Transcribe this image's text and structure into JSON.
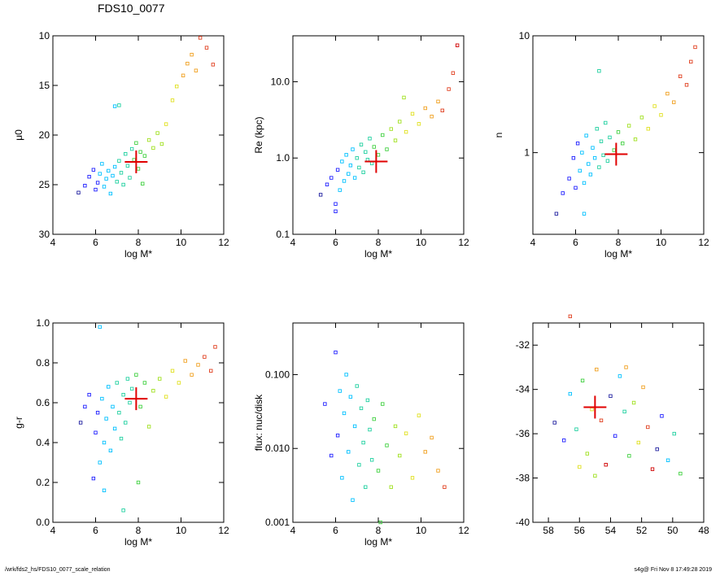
{
  "figure_title": "FDS10_0077",
  "footer": {
    "path": "/wrk/fds2_hs/FDS10_0077_scale_relation",
    "stamp": "s4g@  Fri Nov  8 17:49:28 2019"
  },
  "colors": {
    "marker_ramp": [
      "#2020a0",
      "#2020ff",
      "#00c0ff",
      "#20d0a0",
      "#40d040",
      "#a0e020",
      "#e0e020",
      "#f0a020",
      "#e04020",
      "#d00000"
    ],
    "highlight_cross": "#e00000"
  },
  "chart_data": [
    {
      "type": "scatter",
      "panel": "top-left",
      "xlabel": "log M*",
      "ylabel": "μ0",
      "xlim": [
        4,
        12
      ],
      "ylim": [
        30,
        10
      ],
      "xticks": [
        "4",
        "6",
        "8",
        "10",
        "12"
      ],
      "yticks": [
        "10",
        "15",
        "20",
        "25",
        "30"
      ],
      "y_axis_inverted": true,
      "highlight": {
        "x": 7.9,
        "y": 22.7
      },
      "points": [
        {
          "x": 5.2,
          "y": 25.8
        },
        {
          "x": 5.5,
          "y": 25.1
        },
        {
          "x": 5.7,
          "y": 24.2
        },
        {
          "x": 5.9,
          "y": 23.5
        },
        {
          "x": 6.0,
          "y": 25.5
        },
        {
          "x": 6.1,
          "y": 24.8
        },
        {
          "x": 6.2,
          "y": 23.9
        },
        {
          "x": 6.3,
          "y": 22.9
        },
        {
          "x": 6.4,
          "y": 25.2
        },
        {
          "x": 6.5,
          "y": 24.4
        },
        {
          "x": 6.6,
          "y": 23.6
        },
        {
          "x": 6.7,
          "y": 25.9
        },
        {
          "x": 6.8,
          "y": 24.1
        },
        {
          "x": 6.9,
          "y": 23.2
        },
        {
          "x": 7.0,
          "y": 24.7
        },
        {
          "x": 7.1,
          "y": 22.6
        },
        {
          "x": 7.2,
          "y": 23.8
        },
        {
          "x": 7.3,
          "y": 25.0
        },
        {
          "x": 7.4,
          "y": 21.9
        },
        {
          "x": 7.5,
          "y": 23.1
        },
        {
          "x": 7.6,
          "y": 24.3
        },
        {
          "x": 7.7,
          "y": 21.4
        },
        {
          "x": 7.8,
          "y": 22.5
        },
        {
          "x": 7.9,
          "y": 20.8
        },
        {
          "x": 8.0,
          "y": 23.4
        },
        {
          "x": 8.1,
          "y": 21.7
        },
        {
          "x": 8.3,
          "y": 22.1
        },
        {
          "x": 8.5,
          "y": 20.5
        },
        {
          "x": 8.7,
          "y": 21.3
        },
        {
          "x": 8.9,
          "y": 19.8
        },
        {
          "x": 9.1,
          "y": 20.9
        },
        {
          "x": 9.3,
          "y": 18.9
        },
        {
          "x": 9.6,
          "y": 16.5
        },
        {
          "x": 9.8,
          "y": 15.1
        },
        {
          "x": 10.1,
          "y": 14.0
        },
        {
          "x": 10.3,
          "y": 12.8
        },
        {
          "x": 10.5,
          "y": 11.9
        },
        {
          "x": 10.7,
          "y": 13.5
        },
        {
          "x": 10.9,
          "y": 10.2
        },
        {
          "x": 11.2,
          "y": 11.2
        },
        {
          "x": 11.5,
          "y": 12.9
        },
        {
          "x": 6.9,
          "y": 17.1
        },
        {
          "x": 7.1,
          "y": 17.0
        },
        {
          "x": 8.2,
          "y": 24.9
        }
      ]
    },
    {
      "type": "scatter",
      "panel": "top-middle",
      "xlabel": "log M*",
      "ylabel": "Re (kpc)",
      "xlim": [
        4,
        12
      ],
      "ylim": [
        0.1,
        40
      ],
      "yscale": "log",
      "xticks": [
        "4",
        "6",
        "8",
        "10",
        "12"
      ],
      "yticks": [
        "0.1",
        "1.0",
        "10.0"
      ],
      "highlight": {
        "x": 7.9,
        "y": 0.9
      },
      "points": [
        {
          "x": 5.3,
          "y": 0.33
        },
        {
          "x": 5.6,
          "y": 0.45
        },
        {
          "x": 5.8,
          "y": 0.55
        },
        {
          "x": 6.0,
          "y": 0.25
        },
        {
          "x": 6.1,
          "y": 0.7
        },
        {
          "x": 6.2,
          "y": 0.38
        },
        {
          "x": 6.3,
          "y": 0.9
        },
        {
          "x": 6.4,
          "y": 0.5
        },
        {
          "x": 6.5,
          "y": 1.1
        },
        {
          "x": 6.6,
          "y": 0.62
        },
        {
          "x": 6.7,
          "y": 0.8
        },
        {
          "x": 6.8,
          "y": 1.3
        },
        {
          "x": 6.9,
          "y": 0.55
        },
        {
          "x": 7.0,
          "y": 1.0
        },
        {
          "x": 7.1,
          "y": 0.75
        },
        {
          "x": 7.2,
          "y": 1.5
        },
        {
          "x": 7.3,
          "y": 0.65
        },
        {
          "x": 7.4,
          "y": 1.2
        },
        {
          "x": 7.5,
          "y": 0.95
        },
        {
          "x": 7.6,
          "y": 1.8
        },
        {
          "x": 7.7,
          "y": 0.85
        },
        {
          "x": 7.8,
          "y": 1.4
        },
        {
          "x": 8.0,
          "y": 1.1
        },
        {
          "x": 8.2,
          "y": 2.0
        },
        {
          "x": 8.4,
          "y": 1.3
        },
        {
          "x": 8.6,
          "y": 2.4
        },
        {
          "x": 8.8,
          "y": 1.7
        },
        {
          "x": 9.0,
          "y": 3.0
        },
        {
          "x": 9.3,
          "y": 2.2
        },
        {
          "x": 9.6,
          "y": 3.8
        },
        {
          "x": 9.9,
          "y": 2.8
        },
        {
          "x": 10.2,
          "y": 4.5
        },
        {
          "x": 10.5,
          "y": 3.5
        },
        {
          "x": 10.8,
          "y": 5.5
        },
        {
          "x": 11.0,
          "y": 4.2
        },
        {
          "x": 11.3,
          "y": 8.0
        },
        {
          "x": 11.5,
          "y": 13.0
        },
        {
          "x": 11.7,
          "y": 30.0
        },
        {
          "x": 9.2,
          "y": 6.2
        },
        {
          "x": 6.0,
          "y": 0.2
        }
      ]
    },
    {
      "type": "scatter",
      "panel": "top-right",
      "xlabel": "log M*",
      "ylabel": "n",
      "xlim": [
        4,
        12
      ],
      "ylim": [
        0.2,
        10
      ],
      "yscale": "log",
      "xticks": [
        "4",
        "6",
        "8",
        "10",
        "12"
      ],
      "yticks": [
        "1",
        "10"
      ],
      "highlight": {
        "x": 7.9,
        "y": 0.97
      },
      "points": [
        {
          "x": 5.1,
          "y": 0.3
        },
        {
          "x": 5.4,
          "y": 0.45
        },
        {
          "x": 5.7,
          "y": 0.6
        },
        {
          "x": 5.9,
          "y": 0.9
        },
        {
          "x": 6.0,
          "y": 0.5
        },
        {
          "x": 6.1,
          "y": 1.2
        },
        {
          "x": 6.2,
          "y": 0.7
        },
        {
          "x": 6.3,
          "y": 1.0
        },
        {
          "x": 6.4,
          "y": 0.55
        },
        {
          "x": 6.5,
          "y": 1.4
        },
        {
          "x": 6.6,
          "y": 0.8
        },
        {
          "x": 6.7,
          "y": 0.65
        },
        {
          "x": 6.8,
          "y": 1.1
        },
        {
          "x": 6.9,
          "y": 0.9
        },
        {
          "x": 7.0,
          "y": 1.6
        },
        {
          "x": 7.1,
          "y": 0.75
        },
        {
          "x": 7.2,
          "y": 1.25
        },
        {
          "x": 7.3,
          "y": 0.95
        },
        {
          "x": 7.4,
          "y": 1.8
        },
        {
          "x": 7.5,
          "y": 0.85
        },
        {
          "x": 7.6,
          "y": 1.35
        },
        {
          "x": 7.8,
          "y": 1.05
        },
        {
          "x": 8.0,
          "y": 1.5
        },
        {
          "x": 8.2,
          "y": 1.2
        },
        {
          "x": 8.5,
          "y": 1.7
        },
        {
          "x": 8.8,
          "y": 1.3
        },
        {
          "x": 9.1,
          "y": 2.0
        },
        {
          "x": 9.4,
          "y": 1.6
        },
        {
          "x": 9.7,
          "y": 2.5
        },
        {
          "x": 10.0,
          "y": 2.1
        },
        {
          "x": 10.3,
          "y": 3.2
        },
        {
          "x": 10.6,
          "y": 2.7
        },
        {
          "x": 10.9,
          "y": 4.5
        },
        {
          "x": 11.2,
          "y": 3.8
        },
        {
          "x": 11.4,
          "y": 6.0
        },
        {
          "x": 11.6,
          "y": 8.0
        },
        {
          "x": 6.4,
          "y": 0.3
        },
        {
          "x": 7.1,
          "y": 5.0
        }
      ]
    },
    {
      "type": "scatter",
      "panel": "bottom-left",
      "xlabel": "log M*",
      "ylabel": "g-r",
      "xlim": [
        4,
        12
      ],
      "ylim": [
        0.0,
        1.0
      ],
      "xticks": [
        "4",
        "6",
        "8",
        "10",
        "12"
      ],
      "yticks": [
        "0.0",
        "0.2",
        "0.4",
        "0.6",
        "0.8",
        "1.0"
      ],
      "highlight": {
        "x": 7.9,
        "y": 0.62
      },
      "points": [
        {
          "x": 5.3,
          "y": 0.5
        },
        {
          "x": 5.5,
          "y": 0.58
        },
        {
          "x": 5.7,
          "y": 0.64
        },
        {
          "x": 5.9,
          "y": 0.22
        },
        {
          "x": 6.0,
          "y": 0.45
        },
        {
          "x": 6.1,
          "y": 0.55
        },
        {
          "x": 6.2,
          "y": 0.3
        },
        {
          "x": 6.3,
          "y": 0.62
        },
        {
          "x": 6.4,
          "y": 0.4
        },
        {
          "x": 6.5,
          "y": 0.52
        },
        {
          "x": 6.6,
          "y": 0.68
        },
        {
          "x": 6.7,
          "y": 0.36
        },
        {
          "x": 6.8,
          "y": 0.58
        },
        {
          "x": 6.9,
          "y": 0.47
        },
        {
          "x": 7.0,
          "y": 0.7
        },
        {
          "x": 7.1,
          "y": 0.55
        },
        {
          "x": 7.2,
          "y": 0.42
        },
        {
          "x": 7.3,
          "y": 0.64
        },
        {
          "x": 7.4,
          "y": 0.5
        },
        {
          "x": 7.5,
          "y": 0.72
        },
        {
          "x": 7.6,
          "y": 0.6
        },
        {
          "x": 7.7,
          "y": 0.67
        },
        {
          "x": 7.9,
          "y": 0.74
        },
        {
          "x": 8.1,
          "y": 0.58
        },
        {
          "x": 8.3,
          "y": 0.7
        },
        {
          "x": 8.5,
          "y": 0.48
        },
        {
          "x": 8.7,
          "y": 0.66
        },
        {
          "x": 9.0,
          "y": 0.72
        },
        {
          "x": 9.3,
          "y": 0.63
        },
        {
          "x": 9.6,
          "y": 0.76
        },
        {
          "x": 9.9,
          "y": 0.7
        },
        {
          "x": 10.2,
          "y": 0.81
        },
        {
          "x": 10.5,
          "y": 0.74
        },
        {
          "x": 10.8,
          "y": 0.79
        },
        {
          "x": 11.1,
          "y": 0.83
        },
        {
          "x": 11.4,
          "y": 0.76
        },
        {
          "x": 11.6,
          "y": 0.88
        },
        {
          "x": 6.2,
          "y": 0.98
        },
        {
          "x": 7.3,
          "y": 0.06
        },
        {
          "x": 6.4,
          "y": 0.16
        },
        {
          "x": 8.0,
          "y": 0.2
        }
      ]
    },
    {
      "type": "scatter",
      "panel": "bottom-middle",
      "xlabel": "log M*",
      "ylabel": "flux: nuc/disk",
      "xlim": [
        4,
        12
      ],
      "ylim": [
        0.001,
        0.5
      ],
      "yscale": "log",
      "xticks": [
        "4",
        "6",
        "8",
        "10",
        "12"
      ],
      "yticks": [
        "0.001",
        "0.010",
        "0.100"
      ],
      "points": [
        {
          "x": 5.5,
          "y": 0.04
        },
        {
          "x": 5.8,
          "y": 0.008
        },
        {
          "x": 6.0,
          "y": 0.2
        },
        {
          "x": 6.1,
          "y": 0.015
        },
        {
          "x": 6.2,
          "y": 0.06
        },
        {
          "x": 6.3,
          "y": 0.004
        },
        {
          "x": 6.4,
          "y": 0.03
        },
        {
          "x": 6.5,
          "y": 0.1
        },
        {
          "x": 6.6,
          "y": 0.009
        },
        {
          "x": 6.7,
          "y": 0.05
        },
        {
          "x": 6.8,
          "y": 0.002
        },
        {
          "x": 6.9,
          "y": 0.02
        },
        {
          "x": 7.0,
          "y": 0.07
        },
        {
          "x": 7.1,
          "y": 0.006
        },
        {
          "x": 7.2,
          "y": 0.035
        },
        {
          "x": 7.3,
          "y": 0.012
        },
        {
          "x": 7.4,
          "y": 0.003
        },
        {
          "x": 7.5,
          "y": 0.045
        },
        {
          "x": 7.6,
          "y": 0.018
        },
        {
          "x": 7.7,
          "y": 0.007
        },
        {
          "x": 7.8,
          "y": 0.025
        },
        {
          "x": 8.0,
          "y": 0.005
        },
        {
          "x": 8.2,
          "y": 0.04
        },
        {
          "x": 8.4,
          "y": 0.011
        },
        {
          "x": 8.6,
          "y": 0.003
        },
        {
          "x": 8.8,
          "y": 0.02
        },
        {
          "x": 9.0,
          "y": 0.008
        },
        {
          "x": 9.3,
          "y": 0.016
        },
        {
          "x": 9.6,
          "y": 0.004
        },
        {
          "x": 9.9,
          "y": 0.028
        },
        {
          "x": 10.2,
          "y": 0.009
        },
        {
          "x": 10.5,
          "y": 0.014
        },
        {
          "x": 10.8,
          "y": 0.005
        },
        {
          "x": 11.1,
          "y": 0.003
        },
        {
          "x": 8.1,
          "y": 0.001
        }
      ]
    },
    {
      "type": "scatter",
      "panel": "bottom-right",
      "xlim": [
        59,
        48
      ],
      "ylim": [
        -40,
        -31
      ],
      "xticks": [
        "58",
        "56",
        "54",
        "52",
        "50",
        "48"
      ],
      "yticks": [
        "-32",
        "-34",
        "-36",
        "-38",
        "-40"
      ],
      "highlight": {
        "x": 55.0,
        "y": -34.8
      },
      "points": [
        {
          "x": 57.6,
          "y": -35.5
        },
        {
          "x": 57.0,
          "y": -36.3
        },
        {
          "x": 56.6,
          "y": -34.2
        },
        {
          "x": 56.2,
          "y": -35.8
        },
        {
          "x": 55.8,
          "y": -33.6
        },
        {
          "x": 55.5,
          "y": -36.9
        },
        {
          "x": 55.2,
          "y": -34.9
        },
        {
          "x": 54.9,
          "y": -33.1
        },
        {
          "x": 54.6,
          "y": -35.4
        },
        {
          "x": 54.3,
          "y": -37.4
        },
        {
          "x": 54.0,
          "y": -34.3
        },
        {
          "x": 53.7,
          "y": -36.1
        },
        {
          "x": 53.4,
          "y": -33.4
        },
        {
          "x": 53.1,
          "y": -35.0
        },
        {
          "x": 52.8,
          "y": -37.0
        },
        {
          "x": 52.5,
          "y": -34.6
        },
        {
          "x": 52.2,
          "y": -36.4
        },
        {
          "x": 51.9,
          "y": -33.9
        },
        {
          "x": 51.6,
          "y": -35.7
        },
        {
          "x": 51.3,
          "y": -37.6
        },
        {
          "x": 51.0,
          "y": -36.7
        },
        {
          "x": 50.7,
          "y": -35.2
        },
        {
          "x": 50.3,
          "y": -37.2
        },
        {
          "x": 49.9,
          "y": -36.0
        },
        {
          "x": 49.5,
          "y": -37.8
        },
        {
          "x": 55.0,
          "y": -37.9
        },
        {
          "x": 56.0,
          "y": -37.5
        },
        {
          "x": 53.0,
          "y": -33.0
        },
        {
          "x": 56.6,
          "y": -30.7
        }
      ]
    }
  ]
}
